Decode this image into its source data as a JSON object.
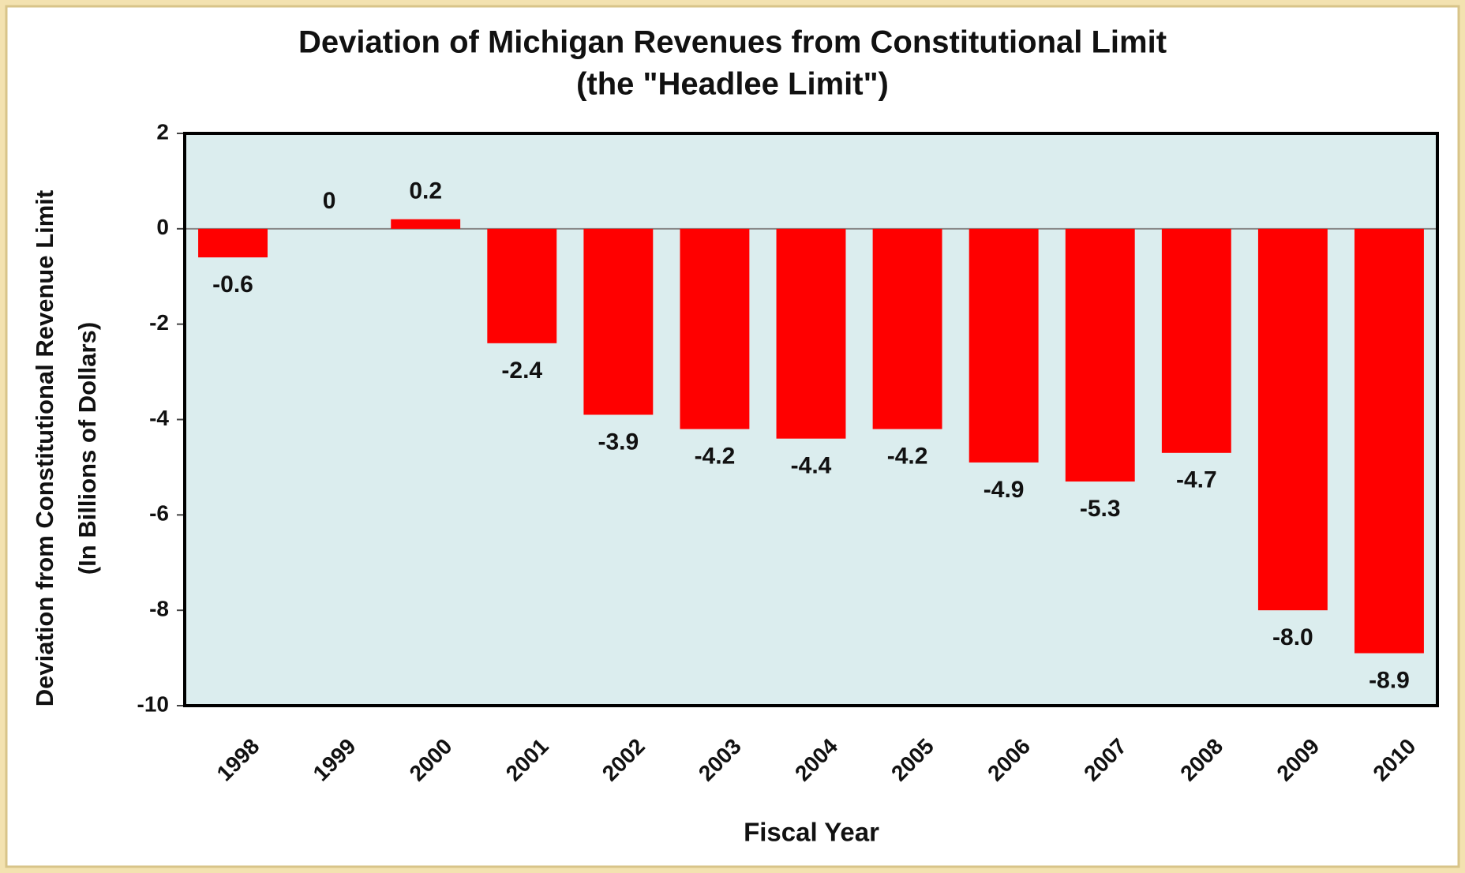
{
  "chart_data": {
    "type": "bar",
    "title": "Deviation of Michigan Revenues from Constitutional Limit",
    "subtitle": "(the \"Headlee Limit\")",
    "y_label": "Deviation from Constitutional Revenue Limit",
    "y_label_2": "(In Billions of Dollars)",
    "x_label": "Fiscal Year",
    "categories": [
      "1998",
      "1999",
      "2000",
      "2001",
      "2002",
      "2003",
      "2004",
      "2005",
      "2006",
      "2007",
      "2008",
      "2009",
      "2010"
    ],
    "values": [
      -0.6,
      0,
      0.2,
      -2.4,
      -3.9,
      -4.2,
      -4.4,
      -4.2,
      -4.9,
      -5.3,
      -4.7,
      -8.0,
      -8.9
    ],
    "value_labels": [
      "-0.6",
      "0",
      "0.2",
      "-2.4",
      "-3.9",
      "-4.2",
      "-4.4",
      "-4.2",
      "-4.9",
      "-5.3",
      "-4.7",
      "-8.0",
      "-8.9"
    ],
    "color": "#ff0000",
    "ylim": [
      -10,
      2
    ],
    "yticks": [
      -10,
      -8,
      -6,
      -4,
      -2,
      0,
      2
    ]
  }
}
